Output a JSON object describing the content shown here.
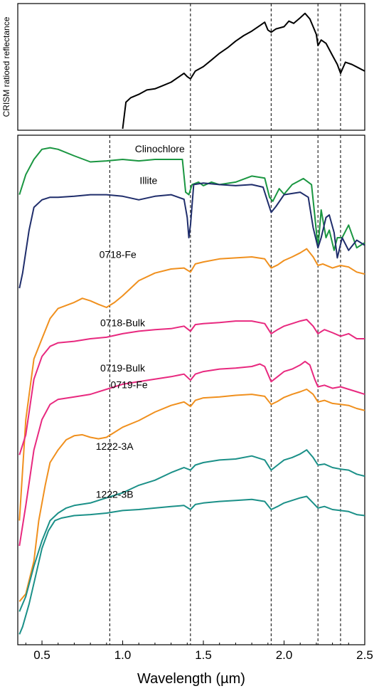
{
  "chart_data": [
    {
      "type": "line",
      "panel": "top",
      "title": "",
      "xlabel": "",
      "ylabel": "CRISM ratioed reflectance",
      "xlim": [
        0.35,
        2.5
      ],
      "grid": false,
      "reference_lines_x": [
        1.42,
        1.92,
        2.21,
        2.35
      ],
      "series": [
        {
          "name": "",
          "color": "#000000",
          "x": [
            1.0,
            1.02,
            1.05,
            1.1,
            1.15,
            1.2,
            1.25,
            1.3,
            1.35,
            1.38,
            1.4,
            1.42,
            1.45,
            1.5,
            1.55,
            1.6,
            1.65,
            1.7,
            1.75,
            1.8,
            1.85,
            1.88,
            1.9,
            1.92,
            1.95,
            2.0,
            2.03,
            2.06,
            2.1,
            2.13,
            2.16,
            2.18,
            2.2,
            2.21,
            2.23,
            2.26,
            2.3,
            2.33,
            2.35,
            2.38,
            2.42,
            2.46,
            2.5
          ],
          "y": [
            0.0,
            0.24,
            0.28,
            0.31,
            0.35,
            0.36,
            0.39,
            0.42,
            0.47,
            0.5,
            0.47,
            0.45,
            0.52,
            0.56,
            0.62,
            0.68,
            0.73,
            0.79,
            0.84,
            0.88,
            0.93,
            0.96,
            0.89,
            0.87,
            0.9,
            0.92,
            0.97,
            0.95,
            1.0,
            1.04,
            0.99,
            0.92,
            0.85,
            0.75,
            0.8,
            0.77,
            0.66,
            0.58,
            0.5,
            0.6,
            0.58,
            0.55,
            0.52
          ]
        }
      ]
    },
    {
      "type": "line",
      "panel": "bottom",
      "title": "",
      "xlabel": "Wavelength (µm)",
      "ylabel": "",
      "xlim": [
        0.35,
        2.5
      ],
      "ylim": [
        0,
        1
      ],
      "x_ticks": [
        "0.5",
        "1.0",
        "1.5",
        "2.0",
        "2.5"
      ],
      "grid": false,
      "reference_lines_x": [
        0.92,
        1.42,
        1.92,
        2.21,
        2.35
      ],
      "series": [
        {
          "name": "Clinochlore",
          "color": "#1a9641",
          "x": [
            0.36,
            0.4,
            0.45,
            0.5,
            0.55,
            0.6,
            0.7,
            0.8,
            0.9,
            1.0,
            1.1,
            1.2,
            1.3,
            1.37,
            1.39,
            1.41,
            1.43,
            1.47,
            1.5,
            1.55,
            1.6,
            1.7,
            1.8,
            1.88,
            1.91,
            1.93,
            1.97,
            2.0,
            2.05,
            2.12,
            2.17,
            2.19,
            2.21,
            2.23,
            2.26,
            2.28,
            2.31,
            2.33,
            2.36,
            2.4,
            2.45,
            2.5
          ],
          "y": [
            0.885,
            0.925,
            0.955,
            0.975,
            0.978,
            0.975,
            0.962,
            0.95,
            0.952,
            0.955,
            0.952,
            0.955,
            0.955,
            0.955,
            0.89,
            0.885,
            0.905,
            0.91,
            0.903,
            0.91,
            0.905,
            0.91,
            0.922,
            0.918,
            0.88,
            0.872,
            0.897,
            0.886,
            0.905,
            0.917,
            0.905,
            0.845,
            0.78,
            0.855,
            0.8,
            0.815,
            0.775,
            0.8,
            0.8,
            0.825,
            0.78,
            0.79
          ]
        },
        {
          "name": "Illite",
          "color": "#1f2d6b",
          "x": [
            0.36,
            0.38,
            0.42,
            0.45,
            0.5,
            0.55,
            0.6,
            0.7,
            0.8,
            0.9,
            1.0,
            1.1,
            1.2,
            1.3,
            1.38,
            1.4,
            1.41,
            1.42,
            1.44,
            1.5,
            1.6,
            1.7,
            1.8,
            1.87,
            1.9,
            1.92,
            1.95,
            2.0,
            2.1,
            2.15,
            2.18,
            2.21,
            2.23,
            2.26,
            2.28,
            2.31,
            2.33,
            2.36,
            2.4,
            2.45,
            2.5
          ],
          "y": [
            0.7,
            0.73,
            0.815,
            0.86,
            0.875,
            0.88,
            0.88,
            0.882,
            0.885,
            0.885,
            0.882,
            0.875,
            0.882,
            0.885,
            0.876,
            0.84,
            0.8,
            0.825,
            0.905,
            0.908,
            0.905,
            0.903,
            0.905,
            0.9,
            0.87,
            0.85,
            0.862,
            0.885,
            0.89,
            0.88,
            0.82,
            0.78,
            0.8,
            0.84,
            0.845,
            0.81,
            0.76,
            0.8,
            0.775,
            0.795,
            0.785
          ]
        },
        {
          "name": "0718-Fe",
          "color": "#f0901e",
          "x": [
            0.36,
            0.4,
            0.45,
            0.5,
            0.55,
            0.6,
            0.7,
            0.75,
            0.8,
            0.85,
            0.9,
            0.95,
            1.0,
            1.1,
            1.2,
            1.3,
            1.38,
            1.42,
            1.45,
            1.5,
            1.6,
            1.7,
            1.8,
            1.88,
            1.92,
            1.96,
            2.0,
            2.05,
            2.1,
            2.14,
            2.18,
            2.21,
            2.24,
            2.3,
            2.35,
            2.4,
            2.45,
            2.5
          ],
          "y": [
            0.24,
            0.44,
            0.56,
            0.6,
            0.64,
            0.66,
            0.672,
            0.68,
            0.675,
            0.668,
            0.662,
            0.672,
            0.685,
            0.715,
            0.73,
            0.738,
            0.74,
            0.732,
            0.748,
            0.752,
            0.758,
            0.76,
            0.762,
            0.758,
            0.74,
            0.746,
            0.755,
            0.762,
            0.77,
            0.778,
            0.762,
            0.745,
            0.748,
            0.74,
            0.745,
            0.742,
            0.732,
            0.728
          ]
        },
        {
          "name": "0718-Bulk",
          "color": "#e8297f",
          "x": [
            0.36,
            0.4,
            0.45,
            0.5,
            0.55,
            0.6,
            0.7,
            0.8,
            0.9,
            1.0,
            1.1,
            1.2,
            1.3,
            1.38,
            1.42,
            1.45,
            1.5,
            1.6,
            1.7,
            1.8,
            1.88,
            1.92,
            1.96,
            2.0,
            2.05,
            2.1,
            2.14,
            2.18,
            2.21,
            2.25,
            2.3,
            2.35,
            2.4,
            2.45,
            2.5
          ],
          "y": [
            0.37,
            0.41,
            0.52,
            0.565,
            0.585,
            0.592,
            0.595,
            0.6,
            0.603,
            0.61,
            0.615,
            0.618,
            0.62,
            0.625,
            0.615,
            0.628,
            0.63,
            0.632,
            0.635,
            0.635,
            0.63,
            0.61,
            0.618,
            0.625,
            0.63,
            0.635,
            0.638,
            0.625,
            0.61,
            0.618,
            0.612,
            0.605,
            0.61,
            0.6,
            0.6
          ]
        },
        {
          "name": "0719-Bulk",
          "color": "#e8297f",
          "x": [
            0.36,
            0.4,
            0.45,
            0.5,
            0.55,
            0.6,
            0.7,
            0.8,
            0.9,
            1.0,
            1.1,
            1.2,
            1.3,
            1.38,
            1.42,
            1.45,
            1.5,
            1.6,
            1.7,
            1.8,
            1.85,
            1.88,
            1.92,
            1.96,
            2.0,
            2.05,
            2.1,
            2.13,
            2.16,
            2.19,
            2.21,
            2.25,
            2.3,
            2.35,
            2.4,
            2.45,
            2.5
          ],
          "y": [
            0.19,
            0.27,
            0.38,
            0.44,
            0.47,
            0.48,
            0.485,
            0.49,
            0.5,
            0.51,
            0.515,
            0.52,
            0.525,
            0.53,
            0.518,
            0.53,
            0.535,
            0.54,
            0.542,
            0.545,
            0.55,
            0.545,
            0.515,
            0.525,
            0.535,
            0.54,
            0.548,
            0.555,
            0.548,
            0.52,
            0.505,
            0.508,
            0.502,
            0.505,
            0.5,
            0.495,
            0.49
          ]
        },
        {
          "name": "0719-Fe",
          "color": "#f0901e",
          "x": [
            0.36,
            0.4,
            0.45,
            0.48,
            0.52,
            0.55,
            0.6,
            0.65,
            0.7,
            0.75,
            0.8,
            0.85,
            0.9,
            0.95,
            1.0,
            1.1,
            1.2,
            1.3,
            1.38,
            1.42,
            1.45,
            1.5,
            1.6,
            1.7,
            1.8,
            1.88,
            1.92,
            1.96,
            2.0,
            2.05,
            2.1,
            2.14,
            2.18,
            2.21,
            2.25,
            2.3,
            2.35,
            2.4,
            2.45,
            2.5
          ],
          "y": [
            0.08,
            0.095,
            0.16,
            0.24,
            0.31,
            0.355,
            0.38,
            0.4,
            0.408,
            0.41,
            0.405,
            0.402,
            0.405,
            0.415,
            0.425,
            0.438,
            0.455,
            0.468,
            0.475,
            0.466,
            0.478,
            0.483,
            0.485,
            0.488,
            0.49,
            0.486,
            0.47,
            0.476,
            0.484,
            0.49,
            0.495,
            0.5,
            0.49,
            0.475,
            0.478,
            0.472,
            0.47,
            0.468,
            0.462,
            0.458
          ]
        },
        {
          "name": "1222-3A",
          "color": "#1b9088",
          "x": [
            0.36,
            0.4,
            0.45,
            0.5,
            0.55,
            0.6,
            0.65,
            0.7,
            0.8,
            0.9,
            1.0,
            1.1,
            1.2,
            1.3,
            1.38,
            1.42,
            1.45,
            1.5,
            1.6,
            1.7,
            1.8,
            1.88,
            1.92,
            1.96,
            2.0,
            2.05,
            2.1,
            2.14,
            2.18,
            2.21,
            2.25,
            2.3,
            2.35,
            2.4,
            2.45,
            2.5
          ],
          "y": [
            0.06,
            0.09,
            0.15,
            0.2,
            0.24,
            0.255,
            0.265,
            0.27,
            0.275,
            0.285,
            0.295,
            0.31,
            0.32,
            0.335,
            0.345,
            0.34,
            0.35,
            0.355,
            0.36,
            0.362,
            0.368,
            0.36,
            0.34,
            0.35,
            0.36,
            0.365,
            0.372,
            0.38,
            0.365,
            0.35,
            0.352,
            0.345,
            0.342,
            0.34,
            0.332,
            0.328
          ]
        },
        {
          "name": "1222-3B",
          "color": "#1b9088",
          "x": [
            0.36,
            0.38,
            0.42,
            0.46,
            0.5,
            0.54,
            0.58,
            0.62,
            0.7,
            0.8,
            0.9,
            1.0,
            1.1,
            1.2,
            1.3,
            1.38,
            1.42,
            1.45,
            1.5,
            1.6,
            1.7,
            1.8,
            1.88,
            1.92,
            1.96,
            2.0,
            2.05,
            2.1,
            2.14,
            2.18,
            2.21,
            2.25,
            2.3,
            2.35,
            2.4,
            2.45,
            2.5
          ],
          "y": [
            0.015,
            0.03,
            0.075,
            0.13,
            0.185,
            0.22,
            0.24,
            0.245,
            0.25,
            0.252,
            0.255,
            0.26,
            0.262,
            0.265,
            0.268,
            0.27,
            0.262,
            0.272,
            0.275,
            0.278,
            0.28,
            0.282,
            0.278,
            0.262,
            0.268,
            0.275,
            0.28,
            0.285,
            0.288,
            0.275,
            0.265,
            0.268,
            0.262,
            0.26,
            0.258,
            0.252,
            0.25
          ]
        }
      ]
    }
  ]
}
